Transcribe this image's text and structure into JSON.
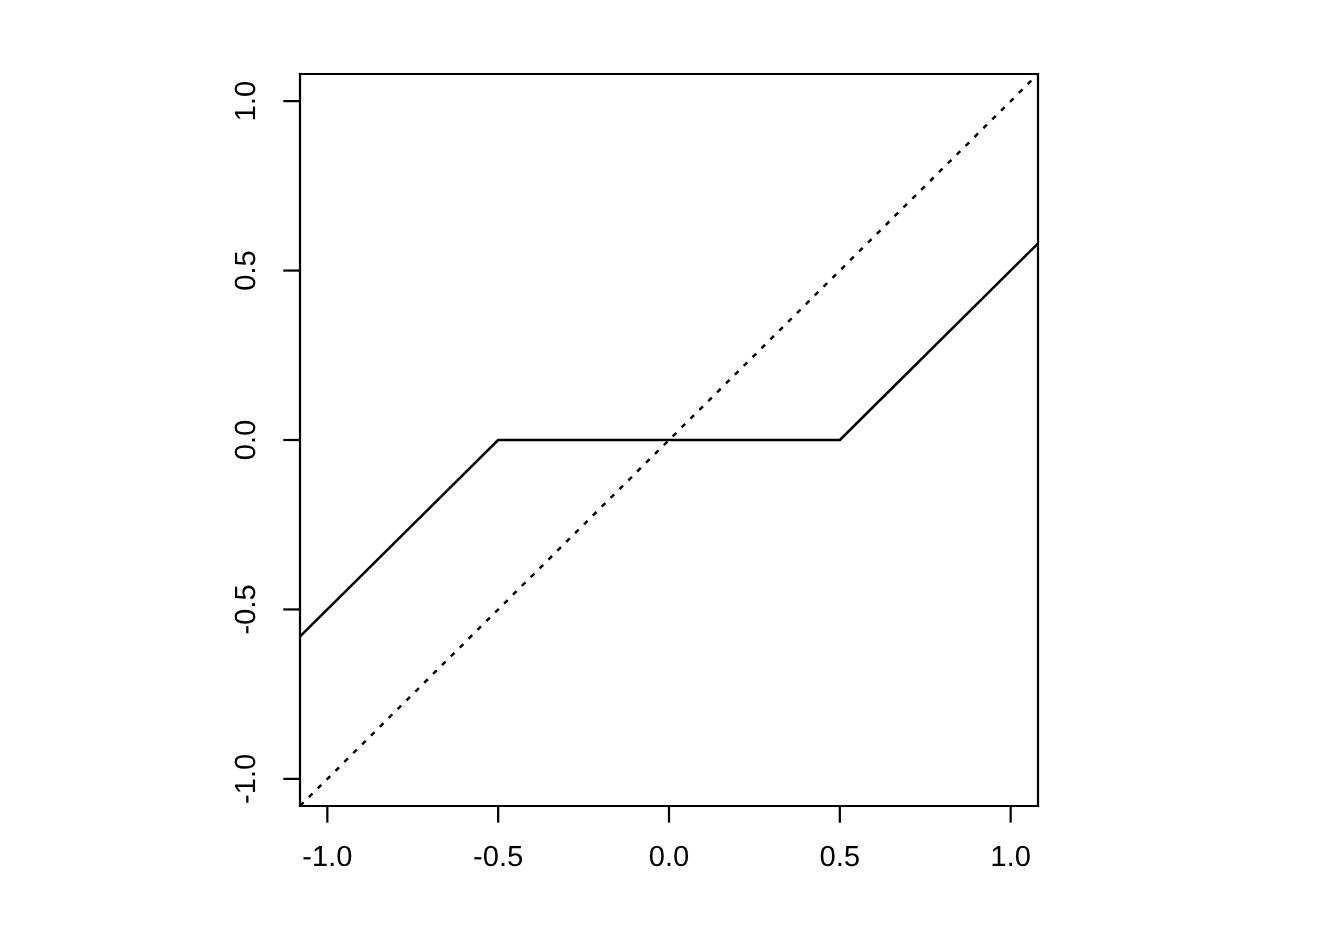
{
  "chart_data": {
    "type": "line",
    "xlim": [
      -1.08,
      1.08
    ],
    "ylim": [
      -1.08,
      1.08
    ],
    "xticks": [
      {
        "value": -1,
        "label": "-1.0"
      },
      -0.5,
      {
        "value": 0,
        "label": "0.0"
      },
      0.5,
      {
        "value": 1,
        "label": "1.0"
      }
    ],
    "yticks": [
      {
        "value": -1,
        "label": "-1.0"
      },
      -0.5,
      {
        "value": 0,
        "label": "0.0"
      },
      0.5,
      {
        "value": 1,
        "label": "1.0"
      }
    ],
    "grid": false,
    "legend": false,
    "marker": "none",
    "series": [
      {
        "color": "#000000",
        "x": [
          -1.08,
          -0.5,
          0.5,
          1.08
        ],
        "values": [
          -0.58,
          0,
          0,
          0.58
        ],
        "line_style": "solid"
      },
      {
        "color": "#000000",
        "x": [
          -1.08,
          1.08
        ],
        "values": [
          -1.08,
          1.08
        ],
        "line_style": "dotted"
      }
    ]
  }
}
